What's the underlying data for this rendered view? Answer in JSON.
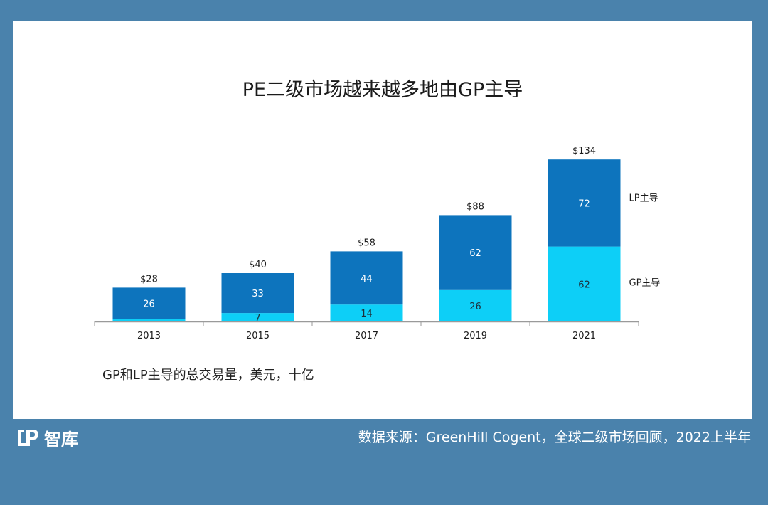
{
  "title": "PE二级市场越来越多地由GP主导",
  "caption": "GP和LP主导的总交易量，美元，十亿",
  "source": "数据来源：GreenHill Cogent，全球二级市场回顾，2022上半年",
  "brand": {
    "name": "智库",
    "logo_icon": "lp-logo-icon"
  },
  "colors": {
    "page_bg": "#4a82ac",
    "lp": "#0d74bd",
    "gp": "#0dcff7"
  },
  "chart_data": {
    "type": "bar",
    "stacked": true,
    "categories": [
      "2013",
      "2015",
      "2017",
      "2019",
      "2021"
    ],
    "series": [
      {
        "name": "GP主导",
        "values": [
          2,
          7,
          14,
          26,
          62
        ],
        "labels": [
          "",
          "7",
          "14",
          "26",
          "62"
        ]
      },
      {
        "name": "LP主导",
        "values": [
          26,
          33,
          44,
          62,
          72
        ],
        "labels": [
          "26",
          "33",
          "44",
          "62",
          "72"
        ]
      }
    ],
    "totals": [
      "$28",
      "$40",
      "$58",
      "$88",
      "$134"
    ],
    "legend_position": "right, inline with bars",
    "grid": false
  }
}
